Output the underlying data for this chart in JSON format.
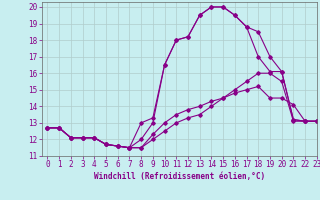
{
  "xlabel": "Windchill (Refroidissement éolien,°C)",
  "xlim": [
    -0.5,
    23
  ],
  "ylim": [
    11,
    20.3
  ],
  "xticks": [
    0,
    1,
    2,
    3,
    4,
    5,
    6,
    7,
    8,
    9,
    10,
    11,
    12,
    13,
    14,
    15,
    16,
    17,
    18,
    19,
    20,
    21,
    22,
    23
  ],
  "yticks": [
    11,
    12,
    13,
    14,
    15,
    16,
    17,
    18,
    19,
    20
  ],
  "background_color": "#c8eef0",
  "grid_color": "#b0cccc",
  "line_color": "#880088",
  "curves": [
    {
      "x": [
        0,
        1,
        2,
        3,
        4,
        5,
        6,
        7,
        8,
        9,
        10,
        11,
        12,
        13,
        14,
        15,
        16,
        17,
        18,
        19,
        20,
        21,
        22,
        23
      ],
      "y": [
        12.7,
        12.7,
        12.1,
        12.1,
        12.1,
        11.7,
        11.6,
        11.5,
        11.5,
        12.0,
        12.5,
        13.0,
        13.3,
        13.5,
        14.0,
        14.5,
        15.0,
        15.5,
        16.0,
        16.0,
        15.5,
        13.1,
        13.1,
        13.1
      ]
    },
    {
      "x": [
        0,
        1,
        2,
        3,
        4,
        5,
        6,
        7,
        8,
        9,
        10,
        11,
        12,
        13,
        14,
        15,
        16,
        17,
        18,
        19,
        20,
        21,
        22,
        23
      ],
      "y": [
        12.7,
        12.7,
        12.1,
        12.1,
        12.1,
        11.7,
        11.6,
        11.5,
        11.5,
        12.3,
        13.0,
        13.5,
        13.8,
        14.0,
        14.3,
        14.5,
        14.8,
        15.0,
        15.2,
        14.5,
        14.5,
        14.1,
        13.1,
        13.1
      ]
    },
    {
      "x": [
        0,
        1,
        2,
        3,
        4,
        5,
        6,
        7,
        8,
        9,
        10,
        11,
        12,
        13,
        14,
        15,
        16,
        17,
        18,
        19,
        20,
        21,
        22,
        23
      ],
      "y": [
        12.7,
        12.7,
        12.1,
        12.1,
        12.1,
        11.7,
        11.6,
        11.5,
        12.0,
        13.0,
        16.5,
        18.0,
        18.2,
        19.5,
        20.0,
        20.0,
        19.5,
        18.8,
        18.5,
        17.0,
        16.1,
        13.2,
        13.1,
        13.1
      ]
    },
    {
      "x": [
        0,
        1,
        2,
        3,
        4,
        5,
        6,
        7,
        8,
        9,
        10,
        11,
        12,
        13,
        14,
        15,
        16,
        17,
        18,
        19,
        20,
        21,
        22,
        23
      ],
      "y": [
        12.7,
        12.7,
        12.1,
        12.1,
        12.1,
        11.7,
        11.6,
        11.5,
        13.0,
        13.3,
        16.5,
        18.0,
        18.2,
        19.5,
        20.0,
        20.0,
        19.5,
        18.8,
        17.0,
        16.1,
        16.1,
        13.2,
        13.1,
        13.1
      ]
    }
  ]
}
